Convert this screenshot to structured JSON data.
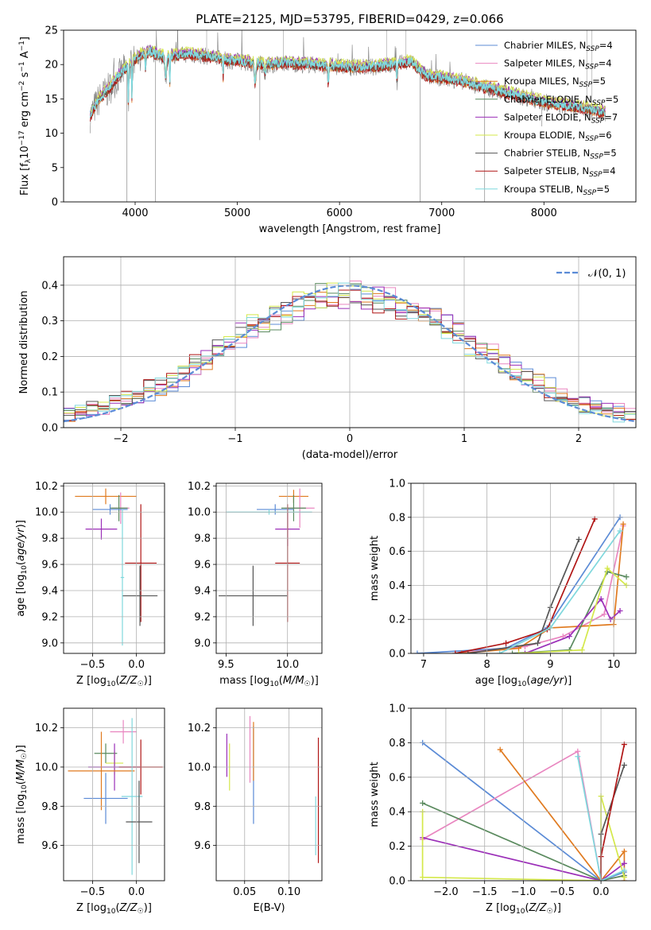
{
  "title": "PLATE=2125, MJD=53795, FIBERID=0429, z=0.066",
  "colors": {
    "chabrier_miles": "#5b8bd6",
    "salpeter_miles": "#e986c0",
    "kroupa_miles": "#e07a1f",
    "chabrier_elodie": "#5a8a5e",
    "salpeter_elodie": "#9b2fb8",
    "kroupa_elodie": "#d4e84a",
    "chabrier_stelib": "#555555",
    "salpeter_stelib": "#b01515",
    "kroupa_stelib": "#7fd8dd",
    "normal": "#5b8bd6"
  },
  "chart_data": [
    {
      "type": "line",
      "name": "spectrum",
      "xlabel": "wavelength [Angstrom, rest frame]",
      "ylabel": "Flux [f_λ10^-17 erg cm^-2 s^-1 A^-1]",
      "xlim": [
        3300,
        8900
      ],
      "ylim": [
        0,
        25
      ],
      "xticks": [
        4000,
        5000,
        6000,
        7000,
        8000
      ],
      "yticks": [
        0,
        5,
        10,
        15,
        20,
        25
      ],
      "legend_placement": "upper-right",
      "series": [
        {
          "key": "chabrier_miles",
          "label": "Chabrier MILES, N",
          "sub": "SSP",
          "suffix": "=4"
        },
        {
          "key": "salpeter_miles",
          "label": "Salpeter MILES, N",
          "sub": "SSP",
          "suffix": "=4"
        },
        {
          "key": "kroupa_miles",
          "label": "Kroupa MILES, N",
          "sub": "SSP",
          "suffix": "=5"
        },
        {
          "key": "chabrier_elodie",
          "label": "Chabrier ELODIE, N",
          "sub": "SSP",
          "suffix": "=5"
        },
        {
          "key": "salpeter_elodie",
          "label": "Salpeter ELODIE, N",
          "sub": "SSP",
          "suffix": "=7"
        },
        {
          "key": "kroupa_elodie",
          "label": "Kroupa ELODIE, N",
          "sub": "SSP",
          "suffix": "=6"
        },
        {
          "key": "chabrier_stelib",
          "label": "Chabrier STELIB, N",
          "sub": "SSP",
          "suffix": "=5"
        },
        {
          "key": "salpeter_stelib",
          "label": "Salpeter STELIB, N",
          "sub": "SSP",
          "suffix": "=4"
        },
        {
          "key": "kroupa_stelib",
          "label": "Kroupa STELIB, N",
          "sub": "SSP",
          "suffix": "=5"
        }
      ],
      "continuum": [
        [
          3560,
          12.5
        ],
        [
          3650,
          15.0
        ],
        [
          3750,
          16.5
        ],
        [
          3850,
          18.5
        ],
        [
          3950,
          20.0
        ],
        [
          4050,
          21.3
        ],
        [
          4150,
          21.8
        ],
        [
          4300,
          21.0
        ],
        [
          4500,
          21.5
        ],
        [
          4700,
          21.2
        ],
        [
          4900,
          20.6
        ],
        [
          5100,
          20.3
        ],
        [
          5300,
          20.0
        ],
        [
          5500,
          20.2
        ],
        [
          5700,
          20.0
        ],
        [
          5900,
          19.8
        ],
        [
          6100,
          19.6
        ],
        [
          6300,
          19.6
        ],
        [
          6500,
          19.9
        ],
        [
          6700,
          20.4
        ],
        [
          6850,
          18.3
        ],
        [
          7000,
          18.0
        ],
        [
          7200,
          17.6
        ],
        [
          7400,
          16.7
        ],
        [
          7600,
          16.0
        ],
        [
          7800,
          15.2
        ],
        [
          8000,
          14.5
        ],
        [
          8200,
          14.0
        ],
        [
          8400,
          13.6
        ],
        [
          8600,
          13.0
        ]
      ]
    },
    {
      "type": "histogram",
      "name": "residuals",
      "xlabel": "(data-model)/error",
      "ylabel": "Normed distribution",
      "xlim": [
        -2.5,
        2.5
      ],
      "ylim": [
        0,
        0.48
      ],
      "xticks": [
        -2,
        -1,
        0,
        1,
        2
      ],
      "yticks": [
        0.0,
        0.1,
        0.2,
        0.3,
        0.4
      ],
      "bin_width": 0.1,
      "legend_label": "𝒩(0, 1)",
      "legend_placement": "upper-right"
    },
    {
      "type": "errorbar",
      "name": "age-vs-Z",
      "xlabel": "Z [log10(Z/Z☉)]",
      "ylabel": "age [log10(age/yr)]",
      "xlim": [
        -0.83,
        0.32
      ],
      "ylim": [
        8.92,
        10.22
      ],
      "xticks": [
        -0.5,
        0.0
      ],
      "yticks": [
        9.0,
        9.2,
        9.4,
        9.6,
        9.8,
        10.0,
        10.2
      ],
      "points": [
        {
          "key": "kroupa_miles",
          "x": -0.35,
          "xerr": 0.35,
          "y": 10.12,
          "yerr": 0.06
        },
        {
          "key": "salpeter_miles",
          "x": -0.18,
          "xerr": 0.1,
          "y": 10.03,
          "yerr": 0.12
        },
        {
          "key": "chabrier_elodie",
          "x": -0.2,
          "xerr": 0.1,
          "y": 10.03,
          "yerr": 0.1
        },
        {
          "key": "chabrier_miles",
          "x": -0.3,
          "xerr": 0.2,
          "y": 10.02,
          "yerr": 0.04
        },
        {
          "key": "salpeter_elodie",
          "x": -0.4,
          "xerr": 0.18,
          "y": 9.87,
          "yerr": 0.08
        },
        {
          "key": "salpeter_stelib",
          "x": 0.05,
          "xerr": 0.18,
          "y": 9.61,
          "yerr": 0.45
        },
        {
          "key": "chabrier_stelib",
          "x": 0.04,
          "xerr": 0.2,
          "y": 9.36,
          "yerr": 0.23
        },
        {
          "key": "kroupa_stelib",
          "x": -0.16,
          "xerr": 0.02,
          "y": 9.5,
          "yerr": 0.52
        }
      ]
    },
    {
      "type": "errorbar",
      "name": "age-vs-mass",
      "xlabel": "mass [log10(M/M☉)]",
      "ylabel": "",
      "xlim": [
        9.42,
        10.28
      ],
      "ylim": [
        8.92,
        10.22
      ],
      "xticks": [
        9.5,
        10.0
      ],
      "yticks": [
        9.0,
        9.2,
        9.4,
        9.6,
        9.8,
        10.0,
        10.2
      ],
      "points": [
        {
          "key": "kroupa_miles",
          "x": 10.05,
          "xerr": 0.12,
          "y": 10.12,
          "yerr": 0.05
        },
        {
          "key": "salpeter_miles",
          "x": 10.1,
          "xerr": 0.12,
          "y": 10.03,
          "yerr": 0.15
        },
        {
          "key": "chabrier_elodie",
          "x": 10.05,
          "xerr": 0.1,
          "y": 10.03,
          "yerr": 0.1
        },
        {
          "key": "chabrier_miles",
          "x": 9.9,
          "xerr": 0.15,
          "y": 10.02,
          "yerr": 0.04
        },
        {
          "key": "kroupa_stelib",
          "x": 9.85,
          "xerr": 0.35,
          "y": 10.0,
          "yerr": 0.02
        },
        {
          "key": "salpeter_elodie",
          "x": 10.0,
          "xerr": 0.1,
          "y": 9.87,
          "yerr": 0.13
        },
        {
          "key": "salpeter_stelib",
          "x": 10.0,
          "xerr": 0.1,
          "y": 9.61,
          "yerr": 0.45
        },
        {
          "key": "chabrier_stelib",
          "x": 9.72,
          "xerr": 0.28,
          "y": 9.36,
          "yerr": 0.23
        }
      ]
    },
    {
      "type": "line",
      "name": "mass-weight-vs-age",
      "xlabel": "age [log10(age/yr)]",
      "ylabel": "mass weight",
      "xlim": [
        6.8,
        10.35
      ],
      "ylim": [
        0,
        1.0
      ],
      "xticks": [
        7,
        8,
        9,
        10
      ],
      "yticks": [
        0.0,
        0.2,
        0.4,
        0.6,
        0.8,
        1.0
      ],
      "grid": true,
      "series": [
        {
          "key": "chabrier_miles",
          "points": [
            [
              6.9,
              0.0
            ],
            [
              8.3,
              0.03
            ],
            [
              8.95,
              0.15
            ],
            [
              10.1,
              0.8
            ]
          ]
        },
        {
          "key": "salpeter_miles",
          "points": [
            [
              7.5,
              0.0
            ],
            [
              8.6,
              0.04
            ],
            [
              9.2,
              0.1
            ],
            [
              9.85,
              0.23
            ],
            [
              10.15,
              0.75
            ]
          ]
        },
        {
          "key": "kroupa_miles",
          "points": [
            [
              7.6,
              0.0
            ],
            [
              8.5,
              0.03
            ],
            [
              9.0,
              0.15
            ],
            [
              10.0,
              0.17
            ],
            [
              10.15,
              0.76
            ]
          ]
        },
        {
          "key": "chabrier_elodie",
          "points": [
            [
              8.4,
              0.0
            ],
            [
              9.3,
              0.02
            ],
            [
              9.9,
              0.48
            ],
            [
              10.2,
              0.45
            ]
          ]
        },
        {
          "key": "salpeter_elodie",
          "points": [
            [
              8.6,
              0.0
            ],
            [
              9.3,
              0.1
            ],
            [
              9.8,
              0.32
            ],
            [
              9.95,
              0.2
            ],
            [
              10.1,
              0.25
            ]
          ]
        },
        {
          "key": "kroupa_elodie",
          "points": [
            [
              8.5,
              0.0
            ],
            [
              9.5,
              0.02
            ],
            [
              9.9,
              0.5
            ],
            [
              10.2,
              0.4
            ]
          ]
        },
        {
          "key": "chabrier_stelib",
          "points": [
            [
              7.7,
              0.0
            ],
            [
              8.8,
              0.06
            ],
            [
              9.0,
              0.27
            ],
            [
              9.45,
              0.67
            ]
          ]
        },
        {
          "key": "salpeter_stelib",
          "points": [
            [
              7.5,
              0.0
            ],
            [
              8.3,
              0.06
            ],
            [
              8.95,
              0.14
            ],
            [
              9.7,
              0.79
            ]
          ]
        },
        {
          "key": "kroupa_stelib",
          "points": [
            [
              8.2,
              0.0
            ],
            [
              9.0,
              0.15
            ],
            [
              10.1,
              0.72
            ]
          ]
        }
      ]
    },
    {
      "type": "errorbar",
      "name": "mass-vs-Z",
      "xlabel": "Z [log10(Z/Z☉)]",
      "ylabel": "mass [log10(M/M☉)]",
      "xlim": [
        -0.83,
        0.32
      ],
      "ylim": [
        9.42,
        10.3
      ],
      "xticks": [
        -0.5,
        0.0
      ],
      "yticks": [
        9.6,
        9.8,
        10.0,
        10.2
      ],
      "points": [
        {
          "key": "salpeter_miles",
          "x": -0.15,
          "xerr": 0.15,
          "y": 10.18,
          "yerr": 0.06
        },
        {
          "key": "chabrier_elodie",
          "x": -0.35,
          "xerr": 0.13,
          "y": 10.07,
          "yerr": 0.05
        },
        {
          "key": "kroupa_elodie",
          "x": -0.25,
          "xerr": 0.1,
          "y": 10.02,
          "yerr": 0.06
        },
        {
          "key": "salpeter_elodie",
          "x": -0.25,
          "xerr": 0.3,
          "y": 10.0,
          "yerr": 0.12
        },
        {
          "key": "salpeter_stelib",
          "x": 0.05,
          "xerr": 0.25,
          "y": 10.0,
          "yerr": 0.14
        },
        {
          "key": "kroupa_miles",
          "x": -0.4,
          "xerr": 0.38,
          "y": 9.98,
          "yerr": 0.2
        },
        {
          "key": "chabrier_miles",
          "x": -0.35,
          "xerr": 0.25,
          "y": 9.84,
          "yerr": 0.13
        },
        {
          "key": "kroupa_stelib",
          "x": -0.05,
          "xerr": 0.12,
          "y": 9.85,
          "yerr": 0.4
        },
        {
          "key": "chabrier_stelib",
          "x": 0.03,
          "xerr": 0.15,
          "y": 9.72,
          "yerr": 0.21
        }
      ]
    },
    {
      "type": "errorbar",
      "name": "mass-vs-EBV",
      "xlabel": "E(B-V)",
      "ylabel": "",
      "xlim": [
        0.018,
        0.137
      ],
      "ylim": [
        9.42,
        10.3
      ],
      "xticks": [
        0.05,
        0.1
      ],
      "yticks": [
        9.6,
        9.8,
        10.0,
        10.2
      ],
      "points": [
        {
          "key": "salpeter_elodie",
          "x": 0.03,
          "xerr": 0.0,
          "y": 10.06,
          "yerr": 0.11
        },
        {
          "key": "kroupa_elodie",
          "x": 0.033,
          "xerr": 0.0,
          "y": 10.0,
          "yerr": 0.12
        },
        {
          "key": "salpeter_miles",
          "x": 0.056,
          "xerr": 0.0,
          "y": 10.09,
          "yerr": 0.17
        },
        {
          "key": "chabrier_miles",
          "x": 0.06,
          "xerr": 0.0,
          "y": 9.96,
          "yerr": 0.25
        },
        {
          "key": "kroupa_miles",
          "x": 0.06,
          "xerr": 0.0,
          "y": 10.08,
          "yerr": 0.15
        },
        {
          "key": "kroupa_stelib",
          "x": 0.13,
          "xerr": 0.0,
          "y": 9.7,
          "yerr": 0.15
        },
        {
          "key": "salpeter_stelib",
          "x": 0.133,
          "xerr": 0.0,
          "y": 9.83,
          "yerr": 0.32
        }
      ]
    },
    {
      "type": "line",
      "name": "mass-weight-vs-Z",
      "xlabel": "Z [log10(Z/Z☉)]",
      "ylabel": "mass weight",
      "xlim": [
        -2.45,
        0.45
      ],
      "ylim": [
        0,
        1.0
      ],
      "xticks": [
        -2.0,
        -1.5,
        -1.0,
        -0.5,
        0.0
      ],
      "yticks": [
        0.0,
        0.2,
        0.4,
        0.6,
        0.8,
        1.0
      ],
      "grid": true,
      "series": [
        {
          "key": "chabrier_miles",
          "points": [
            [
              -2.3,
              0.8
            ],
            [
              0.0,
              0.0
            ],
            [
              0.3,
              0.05
            ]
          ]
        },
        {
          "key": "salpeter_miles",
          "points": [
            [
              -2.3,
              0.24
            ],
            [
              -0.3,
              0.75
            ],
            [
              0.0,
              0.0
            ],
            [
              0.3,
              0.03
            ]
          ]
        },
        {
          "key": "kroupa_miles",
          "points": [
            [
              -1.3,
              0.76
            ],
            [
              0.0,
              0.0
            ],
            [
              0.3,
              0.17
            ],
            [
              0.3,
              0.0
            ]
          ]
        },
        {
          "key": "chabrier_elodie",
          "points": [
            [
              -2.3,
              0.45
            ],
            [
              0.0,
              0.0
            ],
            [
              0.3,
              0.03
            ]
          ]
        },
        {
          "key": "salpeter_elodie",
          "points": [
            [
              -2.3,
              0.25
            ],
            [
              0.0,
              0.0
            ],
            [
              0.3,
              0.1
            ]
          ]
        },
        {
          "key": "kroupa_elodie",
          "points": [
            [
              -2.3,
              0.4
            ],
            [
              -2.3,
              0.02
            ],
            [
              0.0,
              0.0
            ],
            [
              0.0,
              0.49
            ],
            [
              0.3,
              0.02
            ]
          ]
        },
        {
          "key": "chabrier_stelib",
          "points": [
            [
              0.0,
              0.0
            ],
            [
              0.0,
              0.27
            ],
            [
              0.3,
              0.67
            ]
          ]
        },
        {
          "key": "salpeter_stelib",
          "points": [
            [
              0.0,
              0.0
            ],
            [
              0.0,
              0.14
            ],
            [
              0.3,
              0.79
            ]
          ]
        },
        {
          "key": "kroupa_stelib",
          "points": [
            [
              -0.3,
              0.72
            ],
            [
              0.0,
              0.0
            ],
            [
              0.3,
              0.06
            ]
          ]
        }
      ]
    }
  ]
}
